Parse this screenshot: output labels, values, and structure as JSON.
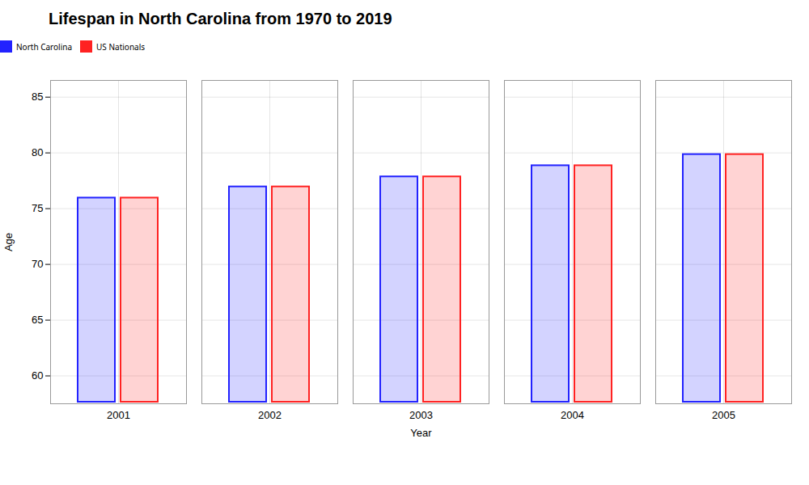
{
  "chart_data": {
    "type": "bar",
    "title": "Lifespan in North Carolina from 1970 to 2019",
    "xlabel": "Year",
    "ylabel": "Age",
    "categories": [
      "2001",
      "2002",
      "2003",
      "2004",
      "2005"
    ],
    "series": [
      {
        "name": "North Carolina",
        "color": "#2222ff",
        "values": [
          76.1,
          77.1,
          78.0,
          79.0,
          80.0
        ]
      },
      {
        "name": "US Nationals",
        "color": "#ff2222",
        "values": [
          76.1,
          77.1,
          78.0,
          79.0,
          80.0
        ]
      }
    ],
    "ylim": [
      57.5,
      86.5
    ],
    "yticks": [
      60,
      65,
      70,
      75,
      80,
      85
    ],
    "grid": true,
    "legend": "top"
  }
}
